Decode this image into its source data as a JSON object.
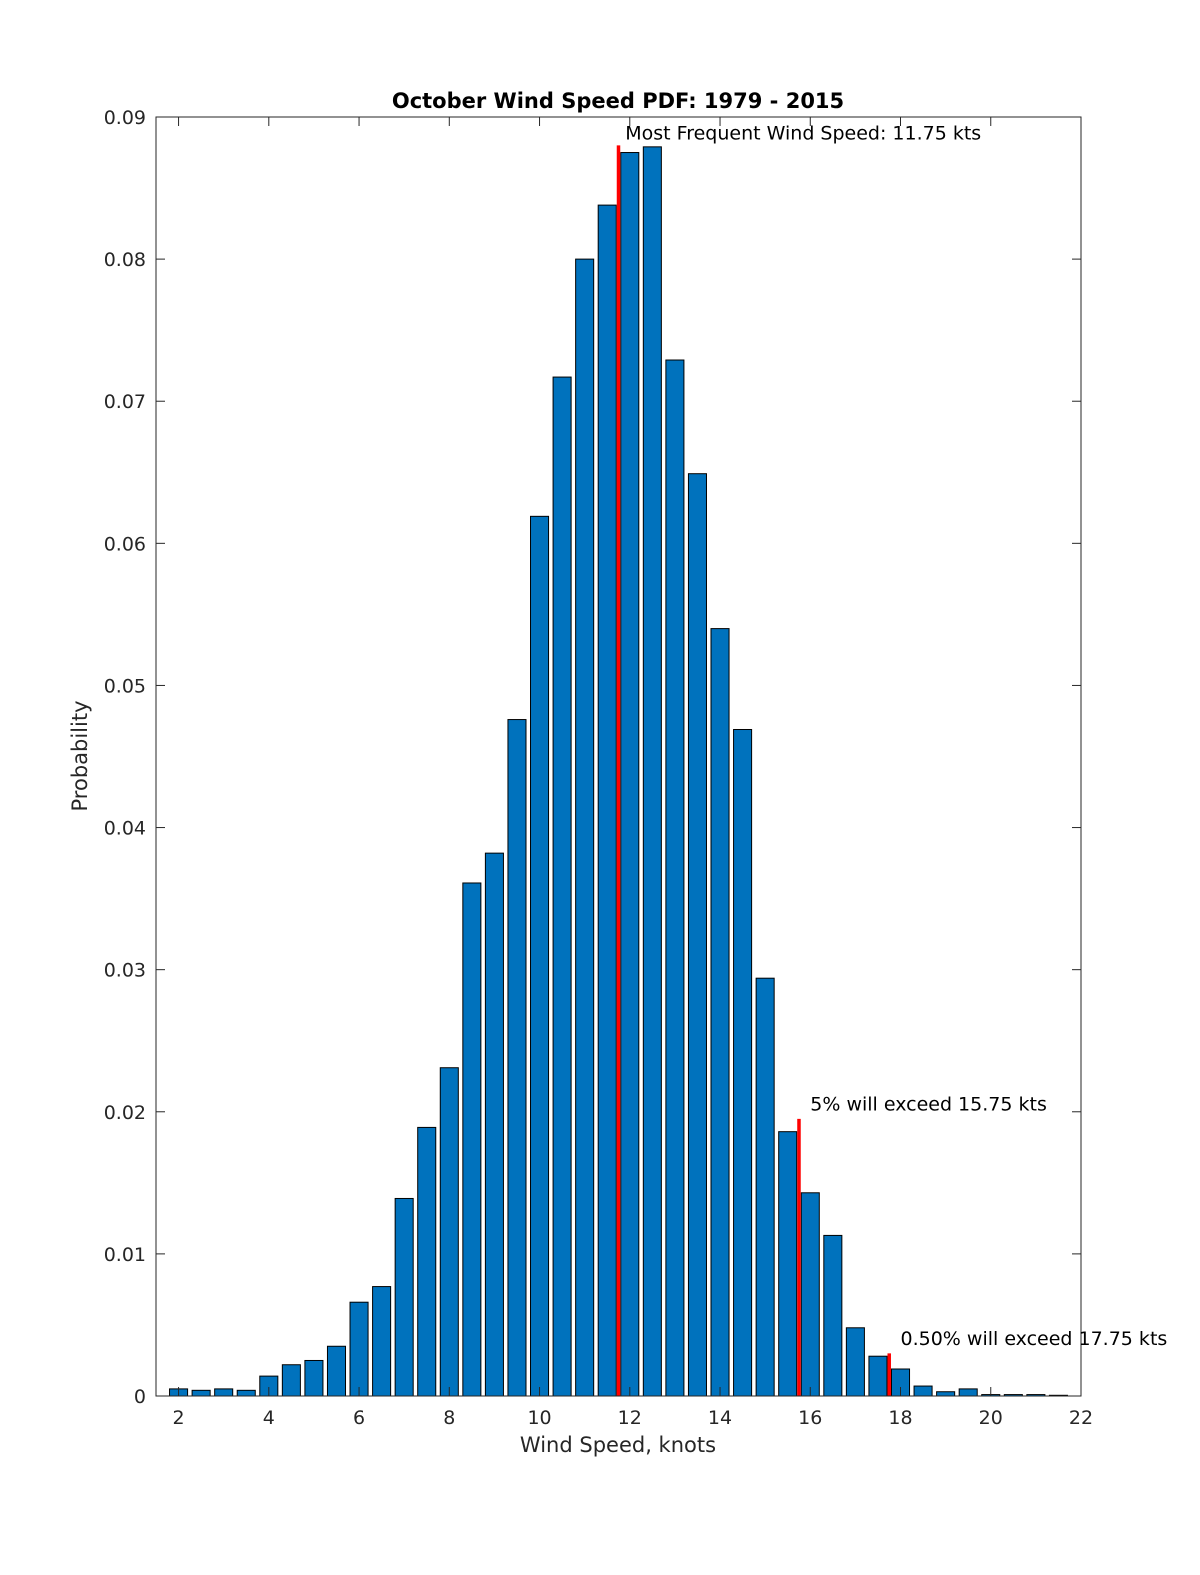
{
  "chart_data": {
    "type": "bar",
    "title": "October Wind Speed PDF: 1979 - 2015",
    "xlabel": "Wind Speed, knots",
    "ylabel": "Probability",
    "xlim": [
      1.5,
      22
    ],
    "ylim": [
      0,
      0.09
    ],
    "xticks": [
      2,
      4,
      6,
      8,
      10,
      12,
      14,
      16,
      18,
      20,
      22
    ],
    "yticks": [
      0,
      0.01,
      0.02,
      0.03,
      0.04,
      0.05,
      0.06,
      0.07,
      0.08,
      0.09
    ],
    "ytick_labels": [
      "0",
      "0.01",
      "0.02",
      "0.03",
      "0.04",
      "0.05",
      "0.06",
      "0.07",
      "0.08",
      "0.09"
    ],
    "bar_width": 0.4,
    "bar_color": "#0072bd",
    "marker_color": "#ff0000",
    "x": [
      2,
      2.5,
      3,
      3.5,
      4,
      4.5,
      5,
      5.5,
      6,
      6.5,
      7,
      7.5,
      8,
      8.5,
      9,
      9.5,
      10,
      10.5,
      11,
      11.5,
      12,
      12.5,
      13,
      13.5,
      14,
      14.5,
      15,
      15.5,
      16,
      16.5,
      17,
      17.5,
      18,
      18.5,
      19,
      19.5,
      20,
      20.5,
      21,
      21.5
    ],
    "values": [
      0.0005,
      0.0004,
      0.0005,
      0.0004,
      0.0014,
      0.0022,
      0.0025,
      0.0035,
      0.0066,
      0.0077,
      0.0139,
      0.0189,
      0.0231,
      0.0361,
      0.0382,
      0.0476,
      0.0619,
      0.0717,
      0.08,
      0.0838,
      0.0875,
      0.0879,
      0.0729,
      0.0649,
      0.054,
      0.0469,
      0.0294,
      0.0186,
      0.0143,
      0.0113,
      0.0048,
      0.0028,
      0.0019,
      0.0007,
      0.0003,
      0.0005,
      0.0001,
      0.0001,
      0.0001,
      5e-05
    ],
    "markers": [
      {
        "x": 11.75,
        "y_top": 0.088,
        "label": "Most Frequent Wind Speed: 11.75 kts",
        "label_x": 11.9,
        "label_y": 0.0884
      },
      {
        "x": 15.75,
        "y_top": 0.0195,
        "label": "5% will exceed 15.75 kts",
        "label_x": 16.0,
        "label_y": 0.0201
      },
      {
        "x": 17.75,
        "y_top": 0.003,
        "label": "0.50% will exceed 17.75 kts",
        "label_x": 18.0,
        "label_y": 0.0036
      }
    ]
  }
}
